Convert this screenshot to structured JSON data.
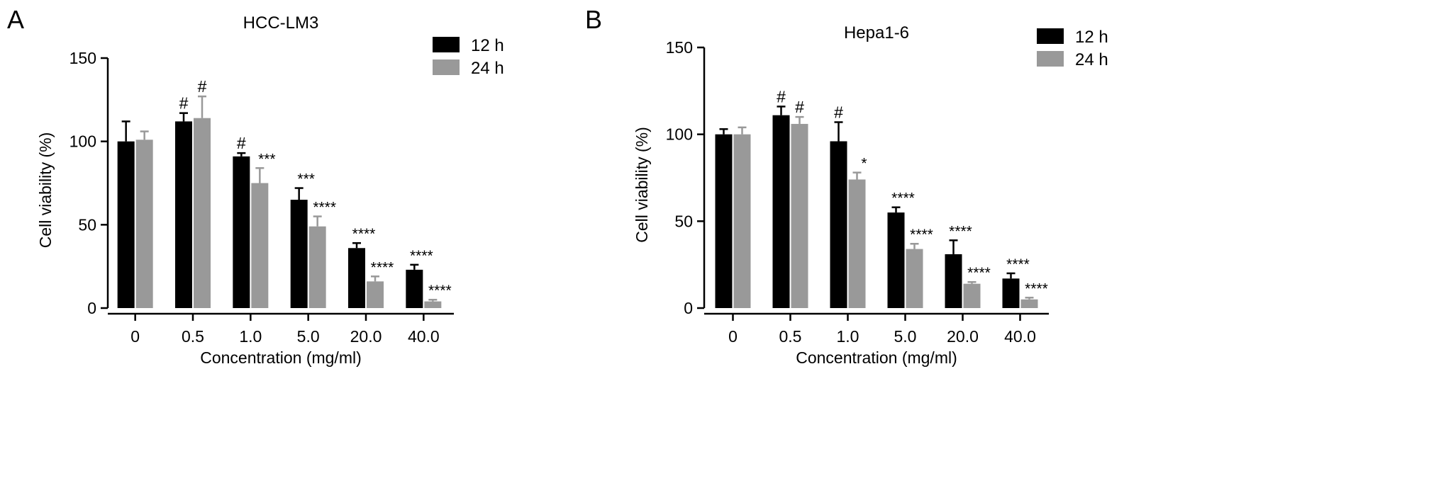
{
  "chart_data": [
    {
      "panel_label": "A",
      "type": "bar",
      "title": "HCC-LM3",
      "xlabel": "Concentration (mg/ml)",
      "ylabel": "Cell viability (%)",
      "ylim": [
        0,
        150
      ],
      "yticks": [
        0,
        50,
        100,
        150
      ],
      "categories": [
        "0",
        "0.5",
        "1.0",
        "5.0",
        "20.0",
        "40.0"
      ],
      "legend_position": "top-right",
      "series": [
        {
          "name": "12 h",
          "color": "#000000",
          "values": [
            100,
            112,
            91,
            65,
            36,
            23
          ],
          "errors": [
            12,
            5,
            2,
            7,
            3,
            3
          ],
          "annotations": [
            "",
            "#",
            "#",
            "***",
            "****",
            "****"
          ]
        },
        {
          "name": "24 h",
          "color": "#999999",
          "values": [
            101,
            114,
            75,
            49,
            16,
            4
          ],
          "errors": [
            5,
            13,
            9,
            6,
            3,
            1
          ],
          "annotations": [
            "",
            "#",
            "***",
            "****",
            "****",
            "****"
          ]
        }
      ]
    },
    {
      "panel_label": "B",
      "type": "bar",
      "title": "Hepa1-6",
      "xlabel": "Concentration (mg/ml)",
      "ylabel": "Cell viability (%)",
      "ylim": [
        0,
        150
      ],
      "yticks": [
        0,
        50,
        100,
        150
      ],
      "categories": [
        "0",
        "0.5",
        "1.0",
        "5.0",
        "20.0",
        "40.0"
      ],
      "legend_position": "top-right",
      "series": [
        {
          "name": "12 h",
          "color": "#000000",
          "values": [
            100,
            111,
            96,
            55,
            31,
            17
          ],
          "errors": [
            3,
            5,
            11,
            3,
            8,
            3
          ],
          "annotations": [
            "",
            "#",
            "#",
            "****",
            "****",
            "****"
          ]
        },
        {
          "name": "24 h",
          "color": "#999999",
          "values": [
            100,
            106,
            74,
            34,
            14,
            5
          ],
          "errors": [
            4,
            4,
            4,
            3,
            1,
            1
          ],
          "annotations": [
            "",
            "#",
            "*",
            "****",
            "****",
            "****"
          ]
        }
      ]
    }
  ]
}
